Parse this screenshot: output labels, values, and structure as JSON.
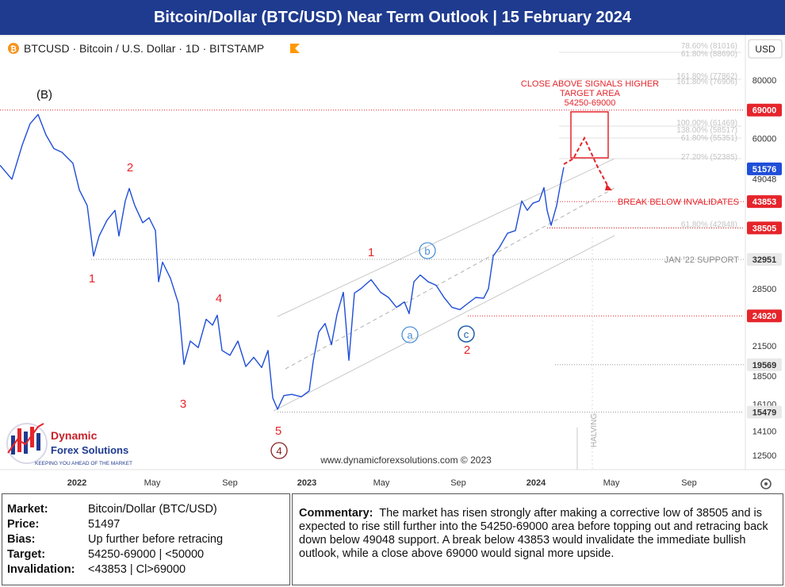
{
  "title": "Bitcoin/Dollar (BTC/USD) Near Term Outlook | 15 February 2024",
  "symbol_header": "BTCUSD · Bitcoin / U.S. Dollar · 1D · BITSTAMP",
  "currency_button": "USD",
  "colors": {
    "title_bg": "#1f3b8f",
    "price_line": "#1f4ed8",
    "wave_red": "#e5252b",
    "wave_blue": "#4a90d9",
    "level_red": "#e5252b",
    "level_gray": "#888888",
    "current_price": "#1f4ed8"
  },
  "chart_data": {
    "type": "line",
    "series": [
      {
        "values": [
          [
            0,
            52500
          ],
          [
            15,
            49000
          ],
          [
            28,
            58000
          ],
          [
            38,
            64500
          ],
          [
            48,
            67500
          ],
          [
            58,
            61000
          ],
          [
            68,
            57000
          ],
          [
            78,
            56000
          ],
          [
            92,
            53000
          ],
          [
            100,
            46500
          ],
          [
            110,
            43000
          ],
          [
            118,
            33500
          ],
          [
            125,
            37000
          ],
          [
            135,
            40000
          ],
          [
            145,
            42000
          ],
          [
            150,
            37000
          ],
          [
            158,
            44000
          ],
          [
            163,
            46800
          ],
          [
            170,
            43000
          ],
          [
            180,
            39500
          ],
          [
            188,
            40500
          ],
          [
            196,
            38000
          ],
          [
            200,
            29500
          ],
          [
            205,
            32500
          ],
          [
            215,
            30000
          ],
          [
            225,
            26500
          ],
          [
            232,
            19600
          ],
          [
            240,
            22000
          ],
          [
            250,
            21300
          ],
          [
            260,
            24500
          ],
          [
            268,
            23800
          ],
          [
            274,
            25000
          ],
          [
            280,
            21000
          ],
          [
            290,
            20500
          ],
          [
            300,
            22000
          ],
          [
            310,
            19400
          ],
          [
            320,
            20300
          ],
          [
            330,
            19300
          ],
          [
            338,
            21000
          ],
          [
            344,
            16600
          ],
          [
            350,
            15700
          ],
          [
            358,
            16800
          ],
          [
            368,
            16900
          ],
          [
            380,
            16700
          ],
          [
            390,
            17200
          ],
          [
            395,
            19900
          ],
          [
            402,
            23000
          ],
          [
            410,
            24000
          ],
          [
            418,
            21600
          ],
          [
            425,
            25100
          ],
          [
            433,
            28000
          ],
          [
            440,
            20000
          ],
          [
            447,
            27900
          ],
          [
            455,
            28500
          ],
          [
            468,
            29800
          ],
          [
            480,
            28000
          ],
          [
            490,
            27300
          ],
          [
            500,
            26000
          ],
          [
            510,
            26700
          ],
          [
            516,
            25200
          ],
          [
            522,
            29500
          ],
          [
            530,
            30500
          ],
          [
            540,
            29500
          ],
          [
            550,
            29000
          ],
          [
            560,
            27300
          ],
          [
            570,
            26000
          ],
          [
            580,
            25700
          ],
          [
            590,
            26500
          ],
          [
            600,
            27300
          ],
          [
            610,
            27200
          ],
          [
            616,
            28500
          ],
          [
            622,
            33500
          ],
          [
            630,
            35000
          ],
          [
            640,
            37500
          ],
          [
            650,
            38000
          ],
          [
            658,
            44000
          ],
          [
            665,
            42000
          ],
          [
            672,
            43500
          ],
          [
            680,
            44000
          ],
          [
            686,
            47000
          ],
          [
            690,
            42000
          ],
          [
            695,
            39000
          ],
          [
            702,
            43000
          ],
          [
            707,
            48000
          ],
          [
            711,
            52000
          ]
        ]
      }
    ],
    "x_ticks": [
      "2022",
      "May",
      "Sep",
      "2023",
      "May",
      "Sep",
      "2024",
      "May",
      "Sep"
    ],
    "y_ticks": [
      80000,
      60000,
      49048,
      28500,
      21500,
      18500,
      16100,
      14100,
      12500
    ],
    "scale": "log",
    "ylim": [
      11000,
      95000
    ],
    "current_price": 51576,
    "levels": [
      {
        "value": 69000,
        "color": "red",
        "dotted": true
      },
      {
        "value": 43853,
        "label": "BREAK BELOW INVALIDATES",
        "color": "red",
        "dotted": true
      },
      {
        "value": 38505,
        "color": "red",
        "dotted": true
      },
      {
        "value": 32951,
        "label": "JAN '22 SUPPORT",
        "color": "gray",
        "dotted": true
      },
      {
        "value": 24920,
        "color": "red",
        "dotted": true
      },
      {
        "value": 19569,
        "color": "gray",
        "dotted": true
      },
      {
        "value": 15479,
        "color": "gray",
        "dotted": true
      }
    ],
    "fib_labels": [
      "78.60% (81016)",
      "61.80% (88690)",
      "161.80% (77862)",
      "161.80% (76906)",
      "100.00% (61469)",
      "138.00% (58517)",
      "61.80% (55351)",
      "27.20% (52385)",
      "61.80% (42848)"
    ],
    "waves": [
      {
        "label": "(B)",
        "color": "black"
      },
      {
        "label": "1",
        "color": "red"
      },
      {
        "label": "2",
        "color": "red"
      },
      {
        "label": "3",
        "color": "red"
      },
      {
        "label": "4",
        "color": "red"
      },
      {
        "label": "5",
        "color": "red"
      },
      {
        "label": "4",
        "color": "darkred",
        "circled": true
      },
      {
        "label": "1",
        "color": "red"
      },
      {
        "label": "2",
        "color": "red"
      },
      {
        "label": "a",
        "color": "blue",
        "circled": true
      },
      {
        "label": "b",
        "color": "blue",
        "circled": true
      },
      {
        "label": "c",
        "color": "blue",
        "circled": true
      }
    ],
    "target_box": {
      "low": 54250,
      "high": 69000
    },
    "annotation_close_above": [
      "CLOSE ABOVE SIGNALS HIGHER",
      "TARGET AREA",
      "54250-69000"
    ],
    "halving_label": "HALVING",
    "watermark": "www.dynamicforexsolutions.com © 2023"
  },
  "brand": {
    "name_line1": "Dynamic",
    "name_line2": "Forex Solutions",
    "tagline": "KEEPING YOU AHEAD OF THE MARKET"
  },
  "info": {
    "market_label": "Market:",
    "market_value": "Bitcoin/Dollar (BTC/USD)",
    "price_label": "Price:",
    "price_value": "51497",
    "bias_label": "Bias:",
    "bias_value": "Up further before retracing",
    "target_label": "Target:",
    "target_value": "54250-69000 | <50000",
    "invalidation_label": "Invalidation:",
    "invalidation_value": "<43853 | Cl>69000"
  },
  "commentary": {
    "label": "Commentary:",
    "text": "The market has risen strongly after making a corrective low of 38505 and is expected to rise still further into the 54250-69000 area before topping out and retracing back down below 49048 support.  A break below 43853 would invalidate the immediate bullish outlook, while a close above 69000 would signal more upside."
  }
}
